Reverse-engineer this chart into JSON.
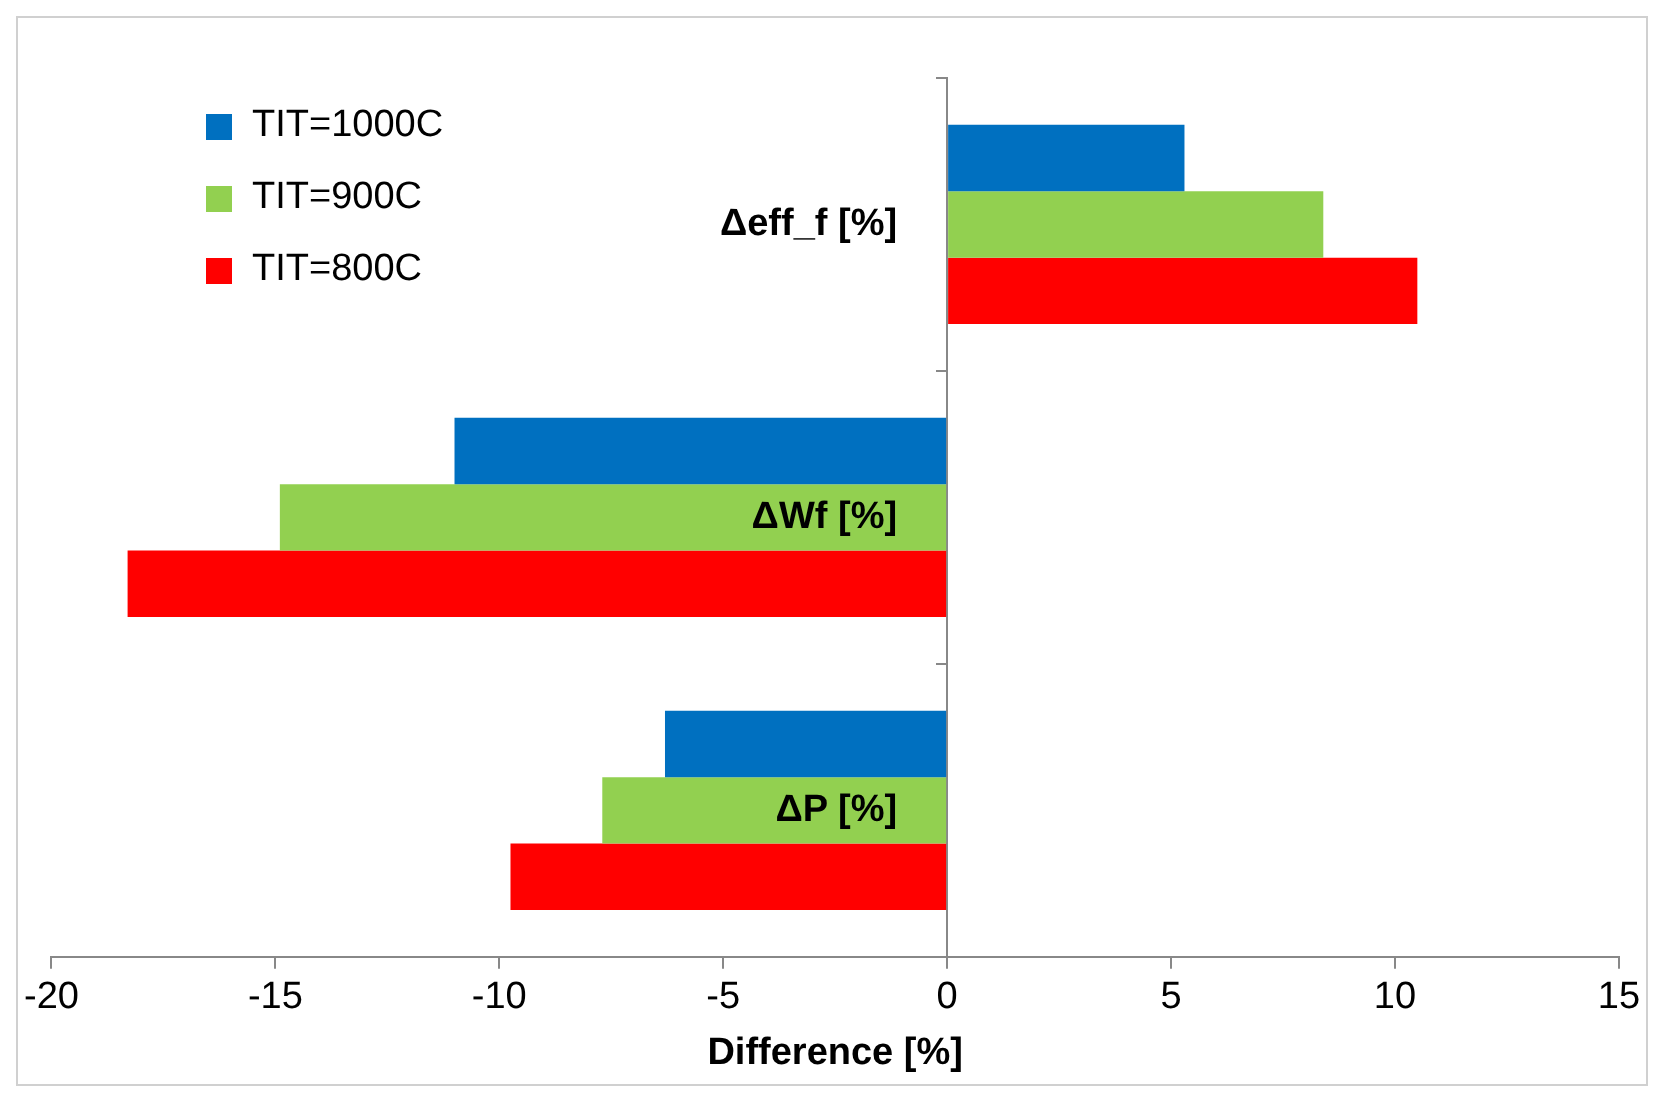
{
  "chart_data": {
    "type": "bar",
    "orientation": "horizontal",
    "xlabel": "Difference [%]",
    "categories": [
      "Δeff_f [%]",
      "ΔWf [%]",
      "ΔP [%]"
    ],
    "series": [
      {
        "name": "TIT=1000C",
        "color": "#0070c0",
        "values": [
          5.3,
          -11.0,
          -6.3
        ]
      },
      {
        "name": "TIT=900C",
        "color": "#92d050",
        "values": [
          8.4,
          -14.9,
          -7.7
        ]
      },
      {
        "name": "TIT=800C",
        "color": "#ff0000",
        "values": [
          10.5,
          -18.3,
          -9.75
        ]
      }
    ],
    "xlim": [
      -20,
      15
    ],
    "xticks": [
      -20,
      -15,
      -10,
      -5,
      0,
      5,
      10,
      15
    ],
    "grid": false,
    "legend": "top left"
  }
}
